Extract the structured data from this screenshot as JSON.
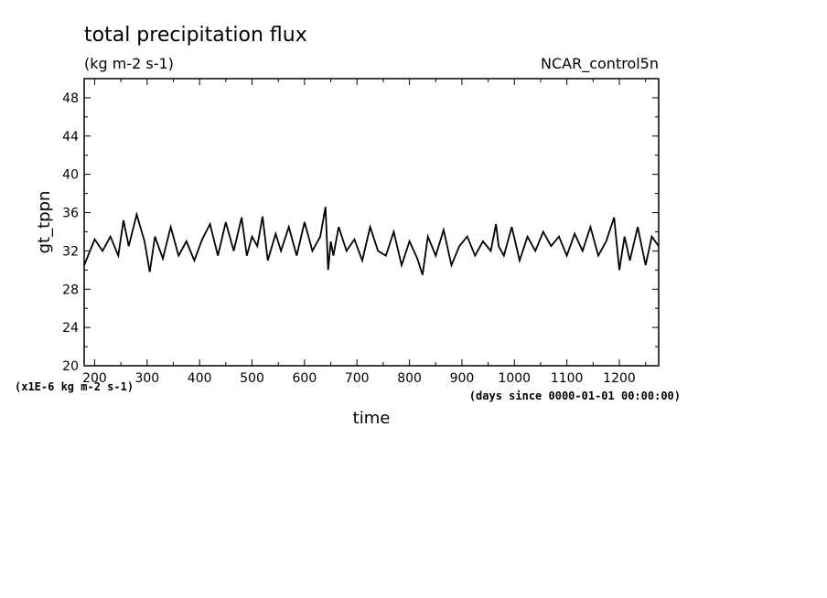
{
  "chart_data": {
    "type": "line",
    "title": "total precipitation flux",
    "subtitle": "(kg m-2 s-1)",
    "dataset_label": "NCAR_control5n",
    "xlabel": "time",
    "x_unit_note": "(days since 0000-01-01 00:00:00)",
    "ylabel": "gt_tppn",
    "y_unit_note": "(x1E-6 kg m-2 s-1)",
    "xlim": [
      180,
      1275
    ],
    "ylim": [
      20,
      50
    ],
    "x_ticks": [
      200,
      300,
      400,
      500,
      600,
      700,
      800,
      900,
      1000,
      1100,
      1200
    ],
    "y_ticks": [
      20,
      24,
      28,
      32,
      36,
      40,
      44,
      48
    ],
    "grid": false,
    "series": [
      {
        "x": [
          180,
          200,
          215,
          230,
          245,
          255,
          265,
          280,
          295,
          305,
          315,
          330,
          345,
          360,
          375,
          390,
          405,
          420,
          435,
          450,
          465,
          480,
          490,
          500,
          510,
          520,
          530,
          545,
          555,
          570,
          585,
          600,
          615,
          630,
          640,
          645,
          650,
          655,
          665,
          680,
          695,
          710,
          725,
          740,
          755,
          770,
          785,
          800,
          815,
          825,
          835,
          850,
          865,
          880,
          895,
          910,
          925,
          940,
          955,
          965,
          970,
          980,
          995,
          1010,
          1025,
          1040,
          1055,
          1070,
          1085,
          1100,
          1115,
          1130,
          1145,
          1160,
          1175,
          1190,
          1200,
          1210,
          1220,
          1235,
          1250,
          1262,
          1275
        ],
        "values": [
          30.5,
          33.2,
          32.0,
          33.5,
          31.5,
          35.2,
          32.5,
          35.8,
          33.0,
          29.8,
          33.5,
          31.2,
          34.5,
          31.5,
          33.0,
          31.0,
          33.2,
          34.8,
          31.5,
          35.0,
          32.0,
          35.5,
          31.5,
          33.5,
          32.5,
          35.6,
          31.0,
          33.8,
          32.0,
          34.5,
          31.5,
          35.0,
          32.0,
          33.5,
          36.6,
          30.0,
          33.0,
          31.5,
          34.5,
          32.0,
          33.2,
          31.0,
          34.5,
          32.0,
          31.5,
          34.0,
          30.5,
          33.0,
          31.2,
          29.5,
          33.5,
          31.5,
          34.2,
          30.5,
          32.5,
          33.5,
          31.5,
          33.0,
          32.0,
          34.8,
          32.5,
          31.5,
          34.5,
          31.0,
          33.5,
          32.0,
          34.0,
          32.5,
          33.5,
          31.5,
          33.8,
          32.0,
          34.5,
          31.5,
          33.0,
          35.5,
          30.0,
          33.5,
          31.0,
          34.5,
          30.5,
          33.5,
          32.5
        ]
      }
    ]
  }
}
